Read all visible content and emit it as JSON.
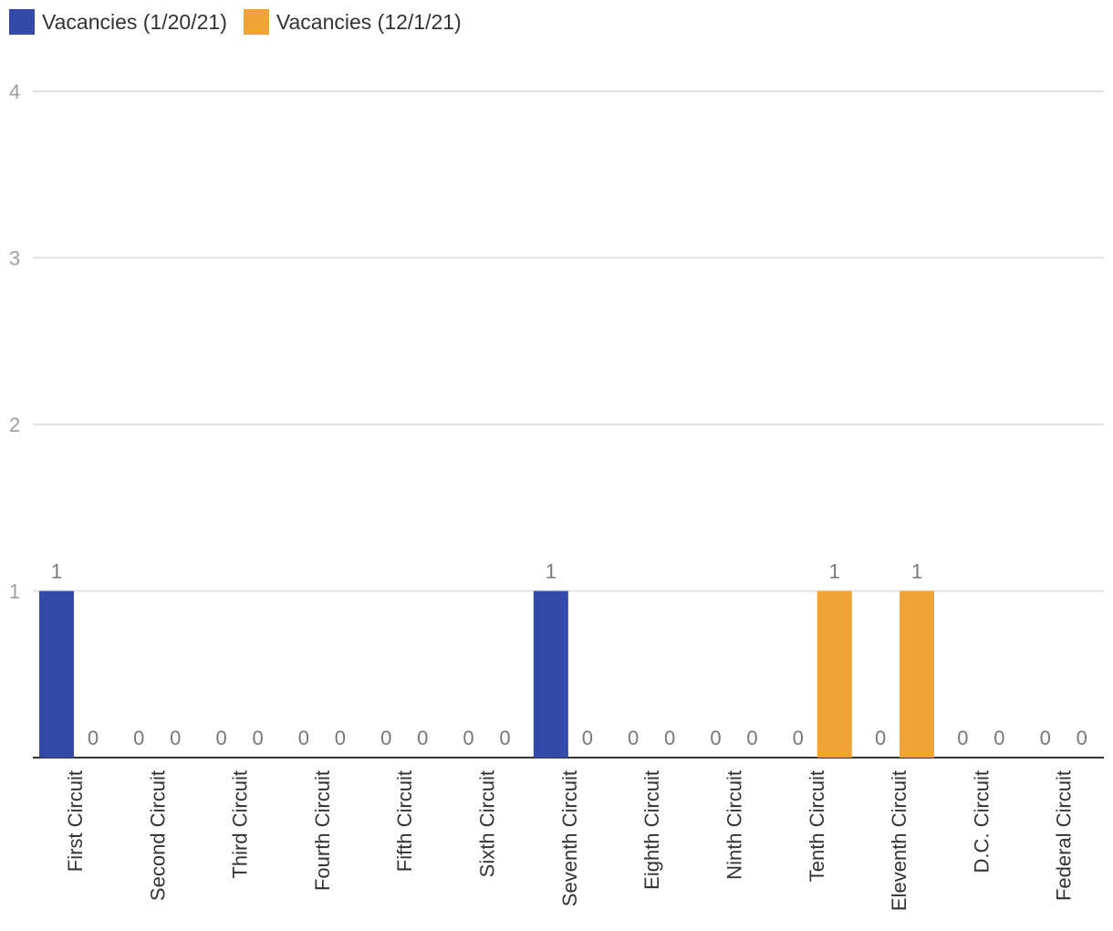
{
  "chart_data": {
    "type": "bar",
    "categories": [
      "First Circuit",
      "Second Circuit",
      "Third Circuit",
      "Fourth Circuit",
      "Fifth Circuit",
      "Sixth Circuit",
      "Seventh Circuit",
      "Eighth Circuit",
      "Ninth Circuit",
      "Tenth Circuit",
      "Eleventh Circuit",
      "D.C. Circuit",
      "Federal Circuit"
    ],
    "series": [
      {
        "name": "Vacancies (1/20/21)",
        "color": "#344aab",
        "values": [
          1,
          0,
          0,
          0,
          0,
          0,
          1,
          0,
          0,
          0,
          0,
          0,
          0
        ]
      },
      {
        "name": "Vacancies (12/1/21)",
        "color": "#f0a336",
        "values": [
          0,
          0,
          0,
          0,
          0,
          0,
          0,
          0,
          0,
          1,
          1,
          0,
          0
        ]
      }
    ],
    "yticks": [
      "1",
      "2",
      "3",
      "4"
    ],
    "ylim": [
      0,
      4
    ],
    "grid": true,
    "legend": "top-left"
  }
}
